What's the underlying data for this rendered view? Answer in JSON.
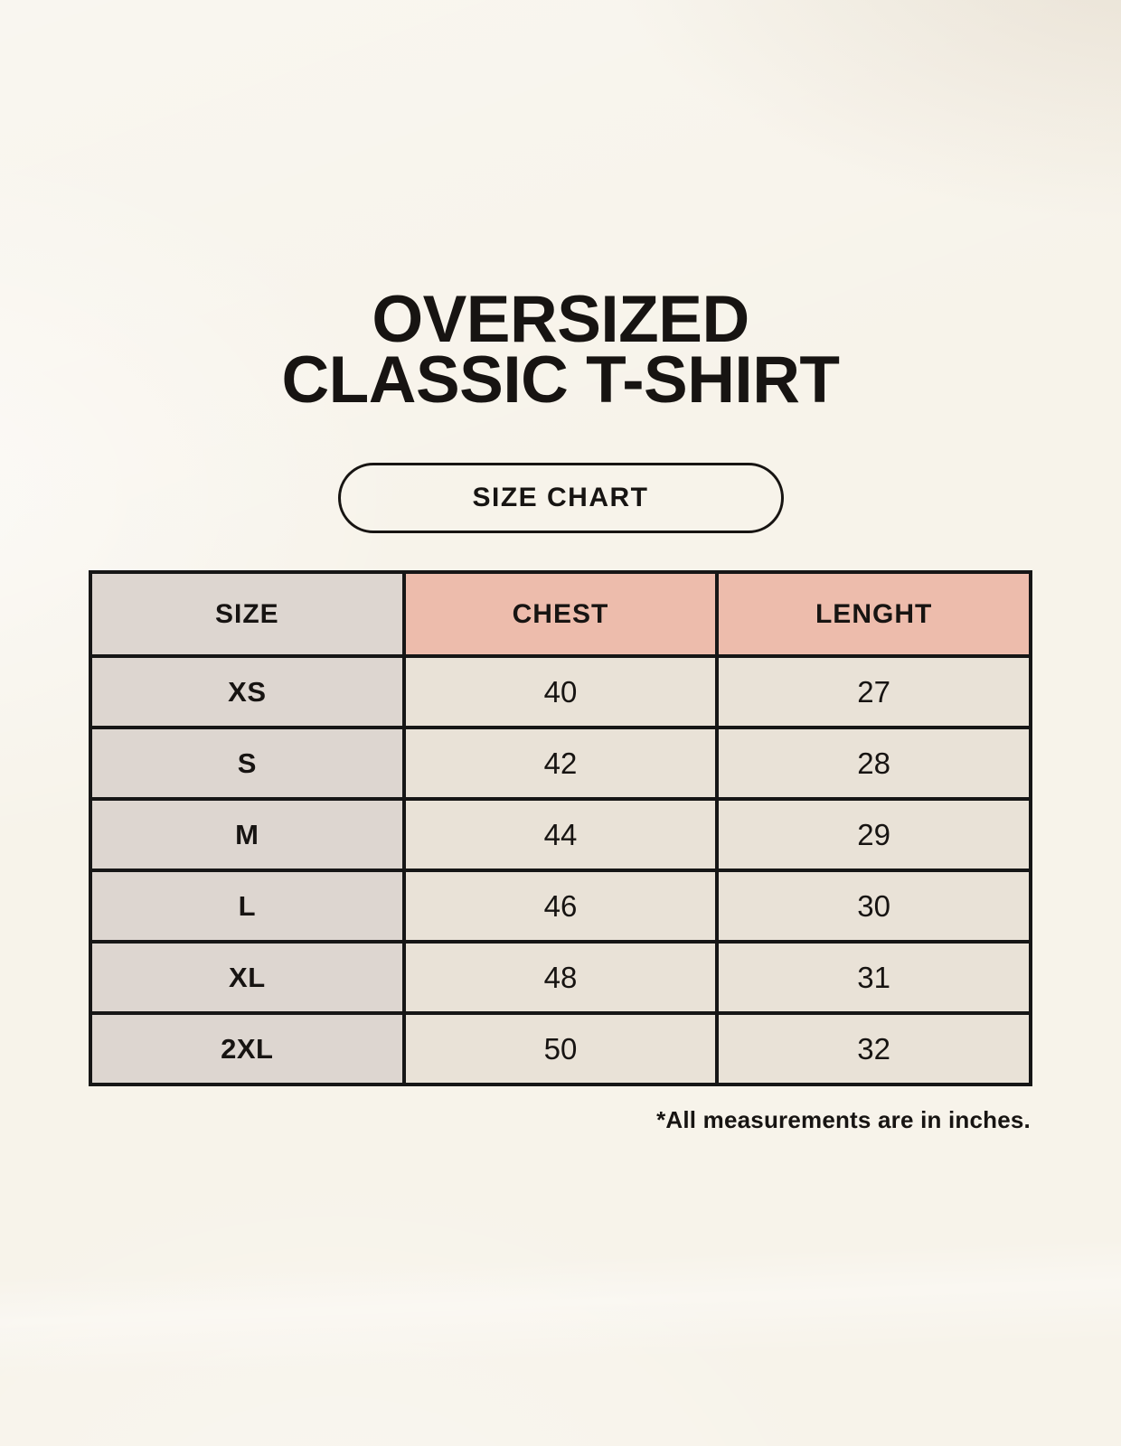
{
  "header": {
    "title_line1": "OVERSIZED",
    "title_line2": "CLASSIC T-SHIRT",
    "button_label": "SIZE CHART"
  },
  "chart_data": {
    "type": "table",
    "title": "OVERSIZED CLASSIC T-SHIRT",
    "subtitle": "SIZE CHART",
    "columns": [
      "SIZE",
      "CHEST",
      "LENGHT"
    ],
    "rows": [
      [
        "XS",
        40,
        27
      ],
      [
        "S",
        42,
        28
      ],
      [
        "M",
        44,
        29
      ],
      [
        "L",
        46,
        30
      ],
      [
        "XL",
        48,
        31
      ],
      [
        "2XL",
        50,
        32
      ]
    ],
    "footnote": "*All measurements are in inches."
  },
  "colors": {
    "page_background": "#f7f3ea",
    "header_accent": "#edbcac",
    "size_column": "#ddd6d0",
    "data_cell": "#e9e2d7",
    "table_border": "#161616",
    "text": "#171412"
  }
}
